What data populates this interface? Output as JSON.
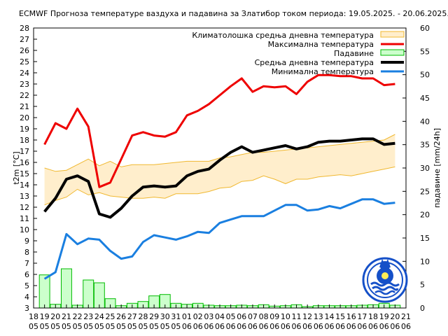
{
  "chart_data": {
    "type": "line",
    "title": "ECMWF Прогноза температуре ваздуха и падавина за Златибор током периода: 19.05.2025. - 20.06.2025.",
    "ylabel": "t2m [°C]",
    "y2label": "падавине [mm/24h]",
    "ylim": [
      3,
      28
    ],
    "y2lim": [
      0,
      60
    ],
    "yticks": [
      3,
      4,
      5,
      6,
      7,
      8,
      9,
      10,
      11,
      12,
      13,
      14,
      15,
      16,
      17,
      18,
      19,
      20,
      21,
      22,
      23,
      24,
      25,
      26,
      27,
      28
    ],
    "y2ticks": [
      0,
      5,
      10,
      15,
      20,
      25,
      30,
      35,
      40,
      45,
      50,
      55,
      60
    ],
    "xticks": [
      {
        "day": "18",
        "month": "05"
      },
      {
        "day": "19",
        "month": "05"
      },
      {
        "day": "20",
        "month": "05"
      },
      {
        "day": "21",
        "month": "05"
      },
      {
        "day": "22",
        "month": "05"
      },
      {
        "day": "23",
        "month": "05"
      },
      {
        "day": "24",
        "month": "05"
      },
      {
        "day": "25",
        "month": "05"
      },
      {
        "day": "26",
        "month": "05"
      },
      {
        "day": "27",
        "month": "05"
      },
      {
        "day": "28",
        "month": "05"
      },
      {
        "day": "29",
        "month": "05"
      },
      {
        "day": "30",
        "month": "05"
      },
      {
        "day": "31",
        "month": "05"
      },
      {
        "day": "01",
        "month": "06"
      },
      {
        "day": "02",
        "month": "06"
      },
      {
        "day": "03",
        "month": "06"
      },
      {
        "day": "04",
        "month": "06"
      },
      {
        "day": "05",
        "month": "06"
      },
      {
        "day": "06",
        "month": "06"
      },
      {
        "day": "07",
        "month": "06"
      },
      {
        "day": "08",
        "month": "06"
      },
      {
        "day": "09",
        "month": "06"
      },
      {
        "day": "10",
        "month": "06"
      },
      {
        "day": "11",
        "month": "06"
      },
      {
        "day": "12",
        "month": "06"
      },
      {
        "day": "13",
        "month": "06"
      },
      {
        "day": "14",
        "month": "06"
      },
      {
        "day": "15",
        "month": "06"
      },
      {
        "day": "16",
        "month": "06"
      },
      {
        "day": "17",
        "month": "06"
      },
      {
        "day": "18",
        "month": "06"
      },
      {
        "day": "19",
        "month": "06"
      },
      {
        "day": "20",
        "month": "06"
      },
      {
        "day": "21",
        "month": "06"
      }
    ],
    "legend": {
      "climate": "Климатолошка средња дневна температура",
      "max": "Максимална температура",
      "precip": "Падавине",
      "mean": "Средња дневна температура",
      "min": "Минимална температура"
    },
    "colors": {
      "max": "#ee0000",
      "mean": "#000000",
      "min": "#1a7fe0",
      "climate_fill": "#ffeecc",
      "climate_edge": "#f0b830",
      "precip_fill": "#ccffcc",
      "precip_edge": "#00bb00"
    },
    "climate_band": {
      "x": [
        1,
        2,
        3,
        4,
        5,
        6,
        7,
        8,
        9,
        10,
        11,
        12,
        13,
        14,
        15,
        16,
        17,
        18,
        19,
        20,
        21,
        22,
        23,
        24,
        25,
        26,
        27,
        28,
        29,
        30,
        31,
        32,
        33
      ],
      "upper": [
        15.5,
        15.2,
        15.3,
        15.8,
        16.3,
        15.7,
        16.1,
        15.6,
        15.8,
        15.8,
        15.8,
        15.9,
        16.0,
        16.1,
        16.1,
        16.1,
        16.4,
        16.5,
        16.7,
        16.9,
        16.9,
        17.0,
        17.1,
        17.2,
        17.3,
        17.4,
        17.5,
        17.6,
        17.7,
        17.8,
        17.9,
        18.0,
        18.5
      ],
      "lower": [
        12.2,
        12.6,
        12.9,
        13.6,
        13.1,
        13.3,
        13.0,
        12.9,
        12.8,
        12.8,
        12.9,
        12.8,
        13.2,
        13.2,
        13.2,
        13.4,
        13.7,
        13.8,
        14.3,
        14.4,
        14.8,
        14.5,
        14.1,
        14.5,
        14.5,
        14.7,
        14.8,
        14.9,
        14.8,
        15.0,
        15.2,
        15.4,
        15.6
      ]
    },
    "series": [
      {
        "name": "Максимална температура",
        "x": [
          1,
          2,
          3,
          4,
          5,
          6,
          7,
          8,
          9,
          10,
          11,
          12,
          13,
          14,
          15,
          16,
          17,
          18,
          19,
          20,
          21,
          22,
          23,
          24,
          25,
          26,
          27,
          28,
          29,
          30,
          31,
          32,
          33
        ],
        "values": [
          17.6,
          19.5,
          19.0,
          20.8,
          19.2,
          13.8,
          14.2,
          16.3,
          18.4,
          18.7,
          18.4,
          18.3,
          18.7,
          20.2,
          20.6,
          21.2,
          22.0,
          22.8,
          23.5,
          22.3,
          22.8,
          22.7,
          22.8,
          22.1,
          23.2,
          23.8,
          23.8,
          23.7,
          23.7,
          23.5,
          23.5,
          22.9,
          23.0
        ]
      },
      {
        "name": "Средња дневна температура",
        "x": [
          1,
          2,
          3,
          4,
          5,
          6,
          7,
          8,
          9,
          10,
          11,
          12,
          13,
          14,
          15,
          16,
          17,
          18,
          19,
          20,
          21,
          22,
          23,
          24,
          25,
          26,
          27,
          28,
          29,
          30,
          31,
          32,
          33
        ],
        "values": [
          11.6,
          12.8,
          14.5,
          14.8,
          14.3,
          11.4,
          11.1,
          11.9,
          13.0,
          13.8,
          13.9,
          13.8,
          13.9,
          14.8,
          15.2,
          15.4,
          16.2,
          16.9,
          17.4,
          16.9,
          17.1,
          17.3,
          17.5,
          17.2,
          17.4,
          17.8,
          17.9,
          17.9,
          18.0,
          18.1,
          18.1,
          17.6,
          17.7
        ]
      },
      {
        "name": "Минимална температура",
        "x": [
          1,
          2,
          3,
          4,
          5,
          6,
          7,
          8,
          9,
          10,
          11,
          12,
          13,
          14,
          15,
          16,
          17,
          18,
          19,
          20,
          21,
          22,
          23,
          24,
          25,
          26,
          27,
          28,
          29,
          30,
          31,
          32,
          33
        ],
        "values": [
          5.6,
          6.2,
          9.6,
          8.7,
          9.2,
          9.1,
          8.1,
          7.4,
          7.6,
          8.9,
          9.5,
          9.3,
          9.1,
          9.4,
          9.8,
          9.7,
          10.6,
          10.9,
          11.2,
          11.2,
          11.2,
          11.7,
          12.2,
          12.2,
          11.7,
          11.8,
          12.1,
          11.9,
          12.3,
          12.7,
          12.7,
          12.3,
          12.4
        ]
      },
      {
        "name": "Падавине",
        "type": "bar",
        "axis": "right",
        "x": [
          1,
          2,
          3,
          4,
          5,
          6,
          7,
          8,
          9,
          10,
          11,
          12,
          13,
          14,
          15,
          16,
          17,
          18,
          19,
          20,
          21,
          22,
          23,
          24,
          25,
          26,
          27,
          28,
          29,
          30,
          31,
          32,
          33
        ],
        "values": [
          7.1,
          0.8,
          8.4,
          0.6,
          6.0,
          5.4,
          2.0,
          0.5,
          1.0,
          1.4,
          2.6,
          2.9,
          1.0,
          0.8,
          1.0,
          0.6,
          0.5,
          0.5,
          0.6,
          0.5,
          0.7,
          0.4,
          0.5,
          0.7,
          0.3,
          0.5,
          0.5,
          0.5,
          0.5,
          0.6,
          0.7,
          1.0,
          0.6
        ]
      }
    ]
  }
}
